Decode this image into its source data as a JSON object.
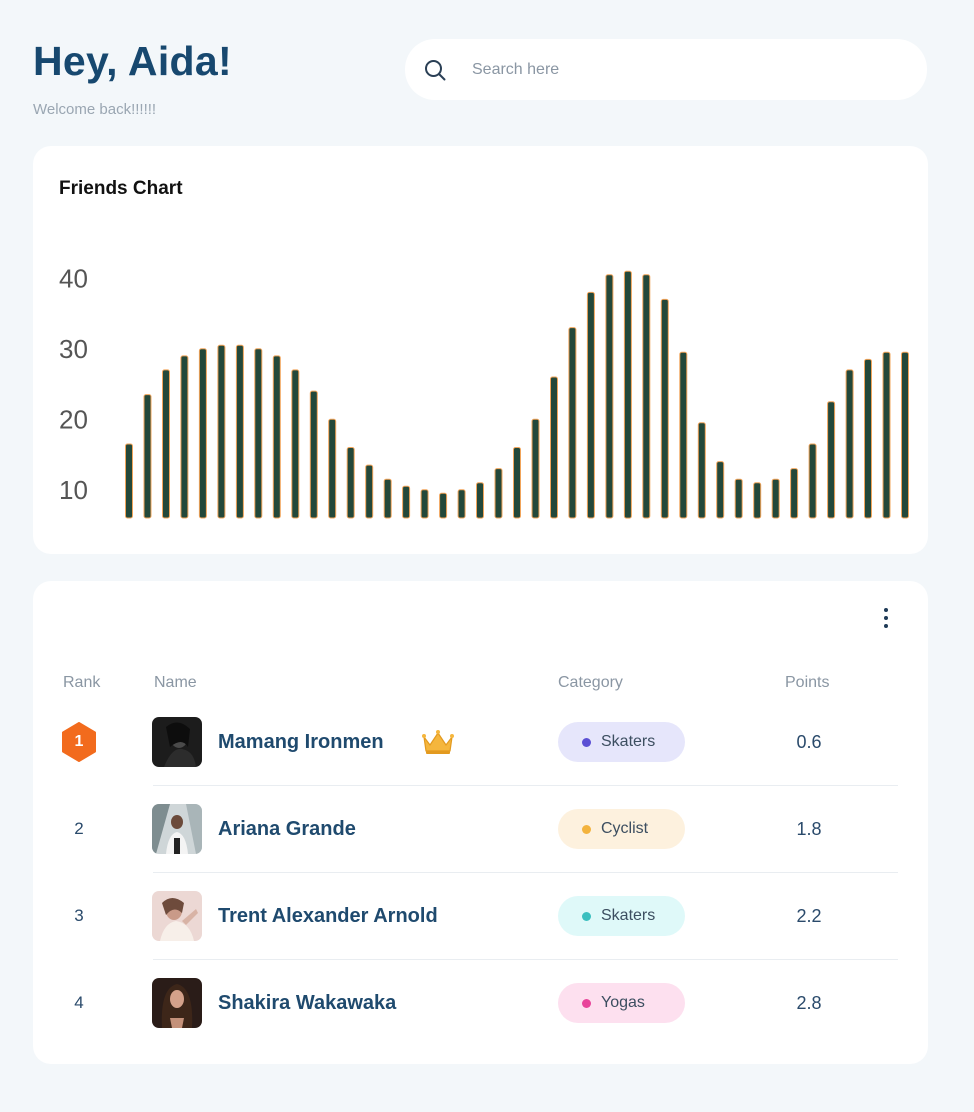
{
  "header": {
    "greeting": "Hey, Aida!",
    "subtitle": "Welcome back!!!!!!"
  },
  "search": {
    "placeholder": "Search here",
    "value": ""
  },
  "chart": {
    "title": "Friends Chart"
  },
  "chart_data": {
    "type": "bar",
    "title": "Friends Chart",
    "xlabel": "",
    "ylabel": "",
    "ylim": [
      6,
      46
    ],
    "yticks": [
      10,
      20,
      30,
      40
    ],
    "grid": false,
    "legend": "none",
    "bar_color": "#23483a",
    "bar_outline_color": "#f1a45a",
    "values": [
      16.5,
      23.5,
      27,
      29,
      30,
      30.5,
      30.5,
      30,
      29,
      27,
      24,
      20,
      16,
      13.5,
      11.5,
      10.5,
      10,
      9.5,
      10,
      11,
      13,
      16,
      20,
      26,
      33,
      38,
      40.5,
      41,
      40.5,
      37,
      29.5,
      19.5,
      14,
      11.5,
      11,
      11.5,
      13,
      16.5,
      22.5,
      27,
      28.5,
      29.5,
      29.5
    ]
  },
  "table": {
    "more_icon": "more-vertical-icon",
    "columns": {
      "rank": "Rank",
      "name": "Name",
      "category": "Category",
      "points": "Points"
    },
    "rows": [
      {
        "rank": "1",
        "name": "Mamang Ironmen",
        "category": "Skaters",
        "points": "0.6",
        "top": true
      },
      {
        "rank": "2",
        "name": "Ariana Grande",
        "category": "Cyclist",
        "points": "1.8"
      },
      {
        "rank": "3",
        "name": "Trent Alexander Arnold",
        "category": "Skaters",
        "points": "2.2"
      },
      {
        "rank": "4",
        "name": "Shakira Wakawaka",
        "category": "Yogas",
        "points": "2.8"
      }
    ]
  },
  "colors": {
    "background": "#f3f7fa",
    "heading": "#17486f",
    "rank_one_badge": "#f26b1d",
    "crown": "#f5b63d",
    "skaters_badge_1": "#e6e6fb",
    "skaters_dot_1": "#5b4fd4",
    "cyclist_badge": "#fdf1de",
    "cyclist_dot": "#f3b33d",
    "skaters_badge_2": "#dff9f9",
    "skaters_dot_2": "#3bbfbf",
    "yogas_badge": "#fde0ef",
    "yogas_dot": "#e8449a"
  }
}
